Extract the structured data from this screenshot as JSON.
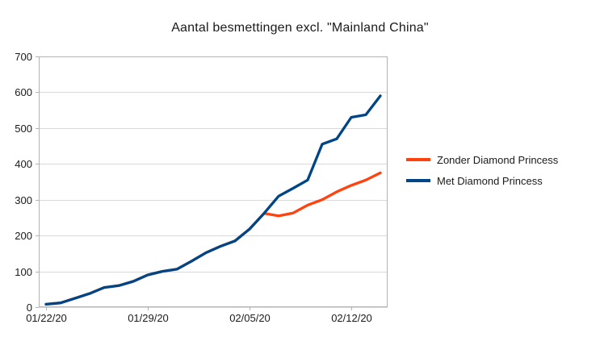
{
  "chart_data": {
    "type": "line",
    "title": "Aantal besmettingen excl. \"Mainland China\"",
    "x_dates": [
      "01/22/20",
      "01/23/20",
      "01/24/20",
      "01/25/20",
      "01/26/20",
      "01/27/20",
      "01/28/20",
      "01/29/20",
      "01/30/20",
      "01/31/20",
      "02/01/20",
      "02/02/20",
      "02/03/20",
      "02/04/20",
      "02/05/20",
      "02/06/20",
      "02/07/20",
      "02/08/20",
      "02/09/20",
      "02/10/20",
      "02/11/20",
      "02/12/20",
      "02/13/20",
      "02/14/20"
    ],
    "xtick_labels": [
      "01/22/20",
      "01/29/20",
      "02/05/20",
      "02/12/20"
    ],
    "xtick_indices": [
      0,
      7,
      14,
      21
    ],
    "ylim": [
      0,
      700
    ],
    "ytick_step": 100,
    "grid": "horizontal-gridlines",
    "legend_position": "right",
    "plot_border_color": "#b3b3b3",
    "gridline_color": "#d9d9d9",
    "series": [
      {
        "name": "Zonder Diamond Princess",
        "color": "#ff420e",
        "values": [
          8,
          12,
          25,
          38,
          55,
          60,
          72,
          90,
          100,
          106,
          128,
          152,
          170,
          185,
          218,
          262,
          255,
          263,
          285,
          300,
          322,
          340,
          355,
          375
        ]
      },
      {
        "name": "Met Diamond Princess",
        "color": "#004586",
        "values": [
          8,
          12,
          25,
          38,
          55,
          60,
          72,
          90,
          100,
          106,
          128,
          152,
          170,
          185,
          218,
          262,
          310,
          332,
          355,
          455,
          470,
          530,
          537,
          590
        ]
      }
    ]
  }
}
